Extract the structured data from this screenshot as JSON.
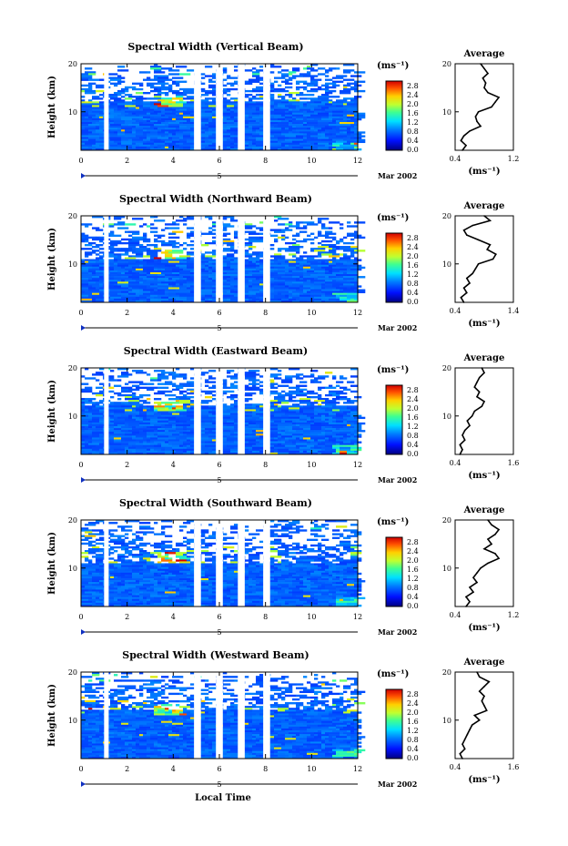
{
  "figure": {
    "month_label": "Mar 2002",
    "xlabel": "Local Time",
    "ylabel": "Height (km)",
    "unit_label": "(ms⁻¹)",
    "avg_title": "Average",
    "day_marker": "5",
    "colorbar_ticks": [
      "2.8",
      "2.4",
      "2.0",
      "1.6",
      "1.2",
      "0.8",
      "0.4",
      "0.0"
    ]
  },
  "chart_data": [
    {
      "type": "heatmap",
      "title": "Spectral Width (Vertical Beam)",
      "xlabel": "Local Time",
      "ylabel": "Height (km)",
      "xlim": [
        0,
        12
      ],
      "ylim": [
        2,
        20
      ],
      "x_ticks": [
        0,
        2,
        4,
        6,
        8,
        10,
        12
      ],
      "y_ticks": [
        10,
        20
      ],
      "colorbar": {
        "label": "(ms⁻¹)",
        "range": [
          0.0,
          2.8
        ],
        "ticks": [
          0.0,
          0.4,
          0.8,
          1.2,
          1.6,
          2.0,
          2.4,
          2.8
        ]
      },
      "data_gaps_hours": [
        [
          1.0,
          1.2
        ],
        [
          4.9,
          5.2
        ],
        [
          5.85,
          6.15
        ],
        [
          6.8,
          7.1
        ],
        [
          7.9,
          8.2
        ]
      ],
      "average_profile": {
        "title": "Average",
        "xlabel": "(ms⁻¹)",
        "xlim": [
          0.4,
          1.2
        ],
        "x_ticks": [
          "0.4",
          "1.2"
        ],
        "ylim": [
          2,
          20
        ],
        "heights_km": [
          2,
          3,
          4,
          5,
          6,
          7,
          8,
          9,
          10,
          11,
          12,
          13,
          14,
          15,
          16,
          17,
          18,
          19,
          20
        ],
        "values": [
          0.5,
          0.55,
          0.48,
          0.52,
          0.6,
          0.75,
          0.7,
          0.68,
          0.72,
          0.9,
          0.95,
          1.0,
          0.85,
          0.8,
          0.82,
          0.78,
          0.85,
          0.8,
          0.75
        ]
      }
    },
    {
      "type": "heatmap",
      "title": "Spectral Width (Northward Beam)",
      "xlabel": "Local Time",
      "ylabel": "Height (km)",
      "xlim": [
        0,
        12
      ],
      "ylim": [
        2,
        20
      ],
      "x_ticks": [
        0,
        2,
        4,
        6,
        8,
        10,
        12
      ],
      "y_ticks": [
        10,
        20
      ],
      "colorbar": {
        "label": "(ms⁻¹)",
        "range": [
          0.0,
          2.8
        ],
        "ticks": [
          0.0,
          0.4,
          0.8,
          1.2,
          1.6,
          2.0,
          2.4,
          2.8
        ]
      },
      "data_gaps_hours": [
        [
          1.0,
          1.2
        ],
        [
          4.9,
          5.2
        ],
        [
          5.85,
          6.15
        ],
        [
          6.8,
          7.1
        ],
        [
          7.9,
          8.2
        ]
      ],
      "average_profile": {
        "title": "Average",
        "xlabel": "(ms⁻¹)",
        "xlim": [
          0.4,
          1.4
        ],
        "x_ticks": [
          "0.4",
          "1.4"
        ],
        "ylim": [
          2,
          20
        ],
        "heights_km": [
          2,
          3,
          4,
          5,
          6,
          7,
          8,
          9,
          10,
          11,
          12,
          13,
          14,
          15,
          16,
          17,
          18,
          19,
          20
        ],
        "values": [
          0.55,
          0.5,
          0.6,
          0.55,
          0.65,
          0.6,
          0.7,
          0.75,
          0.8,
          1.05,
          1.1,
          0.95,
          1.0,
          0.8,
          0.6,
          0.55,
          0.7,
          1.0,
          0.9
        ]
      }
    },
    {
      "type": "heatmap",
      "title": "Spectral Width (Eastward Beam)",
      "xlabel": "Local Time",
      "ylabel": "Height (km)",
      "xlim": [
        0,
        12
      ],
      "ylim": [
        2,
        20
      ],
      "x_ticks": [
        0,
        2,
        4,
        6,
        8,
        10,
        12
      ],
      "y_ticks": [
        10,
        20
      ],
      "colorbar": {
        "label": "(ms⁻¹)",
        "range": [
          0.0,
          2.8
        ],
        "ticks": [
          0.0,
          0.4,
          0.8,
          1.2,
          1.6,
          2.0,
          2.4,
          2.8
        ]
      },
      "data_gaps_hours": [
        [
          1.0,
          1.2
        ],
        [
          4.9,
          5.2
        ],
        [
          5.85,
          6.15
        ],
        [
          6.8,
          7.1
        ],
        [
          7.9,
          8.2
        ]
      ],
      "average_profile": {
        "title": "Average",
        "xlabel": "(ms⁻¹)",
        "xlim": [
          0.4,
          1.6
        ],
        "x_ticks": [
          "0.4",
          "1.6"
        ],
        "ylim": [
          2,
          20
        ],
        "heights_km": [
          2,
          3,
          4,
          5,
          6,
          7,
          8,
          9,
          10,
          11,
          12,
          13,
          14,
          15,
          16,
          17,
          18,
          19,
          20
        ],
        "values": [
          0.5,
          0.55,
          0.5,
          0.6,
          0.55,
          0.6,
          0.7,
          0.65,
          0.75,
          0.8,
          0.95,
          1.0,
          0.85,
          0.9,
          0.8,
          0.85,
          0.9,
          1.0,
          0.95
        ]
      }
    },
    {
      "type": "heatmap",
      "title": "Spectral Width (Southward Beam)",
      "xlabel": "Local Time",
      "ylabel": "Height (km)",
      "xlim": [
        0,
        12
      ],
      "ylim": [
        2,
        20
      ],
      "x_ticks": [
        0,
        2,
        4,
        6,
        8,
        10,
        12
      ],
      "y_ticks": [
        10,
        20
      ],
      "colorbar": {
        "label": "(ms⁻¹)",
        "range": [
          0.0,
          2.8
        ],
        "ticks": [
          0.0,
          0.4,
          0.8,
          1.2,
          1.6,
          2.0,
          2.4,
          2.8
        ]
      },
      "data_gaps_hours": [
        [
          1.0,
          1.2
        ],
        [
          4.9,
          5.2
        ],
        [
          5.85,
          6.15
        ],
        [
          6.8,
          7.1
        ],
        [
          7.9,
          8.2
        ]
      ],
      "average_profile": {
        "title": "Average",
        "xlabel": "(ms⁻¹)",
        "xlim": [
          0.4,
          1.2
        ],
        "x_ticks": [
          "0.4",
          "1.2"
        ],
        "ylim": [
          2,
          20
        ],
        "heights_km": [
          2,
          3,
          4,
          5,
          6,
          7,
          8,
          9,
          10,
          11,
          12,
          13,
          14,
          15,
          16,
          17,
          18,
          19,
          20
        ],
        "values": [
          0.55,
          0.6,
          0.55,
          0.65,
          0.6,
          0.7,
          0.65,
          0.7,
          0.75,
          0.85,
          1.0,
          0.95,
          0.8,
          0.9,
          0.85,
          0.95,
          1.0,
          0.9,
          0.85
        ]
      }
    },
    {
      "type": "heatmap",
      "title": "Spectral Width (Westward Beam)",
      "xlabel": "Local Time",
      "ylabel": "Height (km)",
      "xlim": [
        0,
        12
      ],
      "ylim": [
        2,
        20
      ],
      "x_ticks": [
        0,
        2,
        4,
        6,
        8,
        10,
        12
      ],
      "y_ticks": [
        10,
        20
      ],
      "colorbar": {
        "label": "(ms⁻¹)",
        "range": [
          0.0,
          2.8
        ],
        "ticks": [
          0.0,
          0.4,
          0.8,
          1.2,
          1.6,
          2.0,
          2.4,
          2.8
        ]
      },
      "data_gaps_hours": [
        [
          1.0,
          1.2
        ],
        [
          4.9,
          5.2
        ],
        [
          5.85,
          6.15
        ],
        [
          6.8,
          7.1
        ],
        [
          7.9,
          8.2
        ]
      ],
      "average_profile": {
        "title": "Average",
        "xlabel": "(ms⁻¹)",
        "xlim": [
          0.4,
          1.6
        ],
        "x_ticks": [
          "0.4",
          "1.6"
        ],
        "ylim": [
          2,
          20
        ],
        "heights_km": [
          2,
          3,
          4,
          5,
          6,
          7,
          8,
          9,
          10,
          11,
          12,
          13,
          14,
          15,
          16,
          17,
          18,
          19,
          20
        ],
        "values": [
          0.55,
          0.5,
          0.6,
          0.55,
          0.6,
          0.65,
          0.7,
          0.75,
          0.9,
          0.8,
          1.05,
          1.0,
          0.95,
          1.0,
          0.9,
          1.0,
          1.1,
          0.9,
          0.85
        ]
      }
    }
  ]
}
